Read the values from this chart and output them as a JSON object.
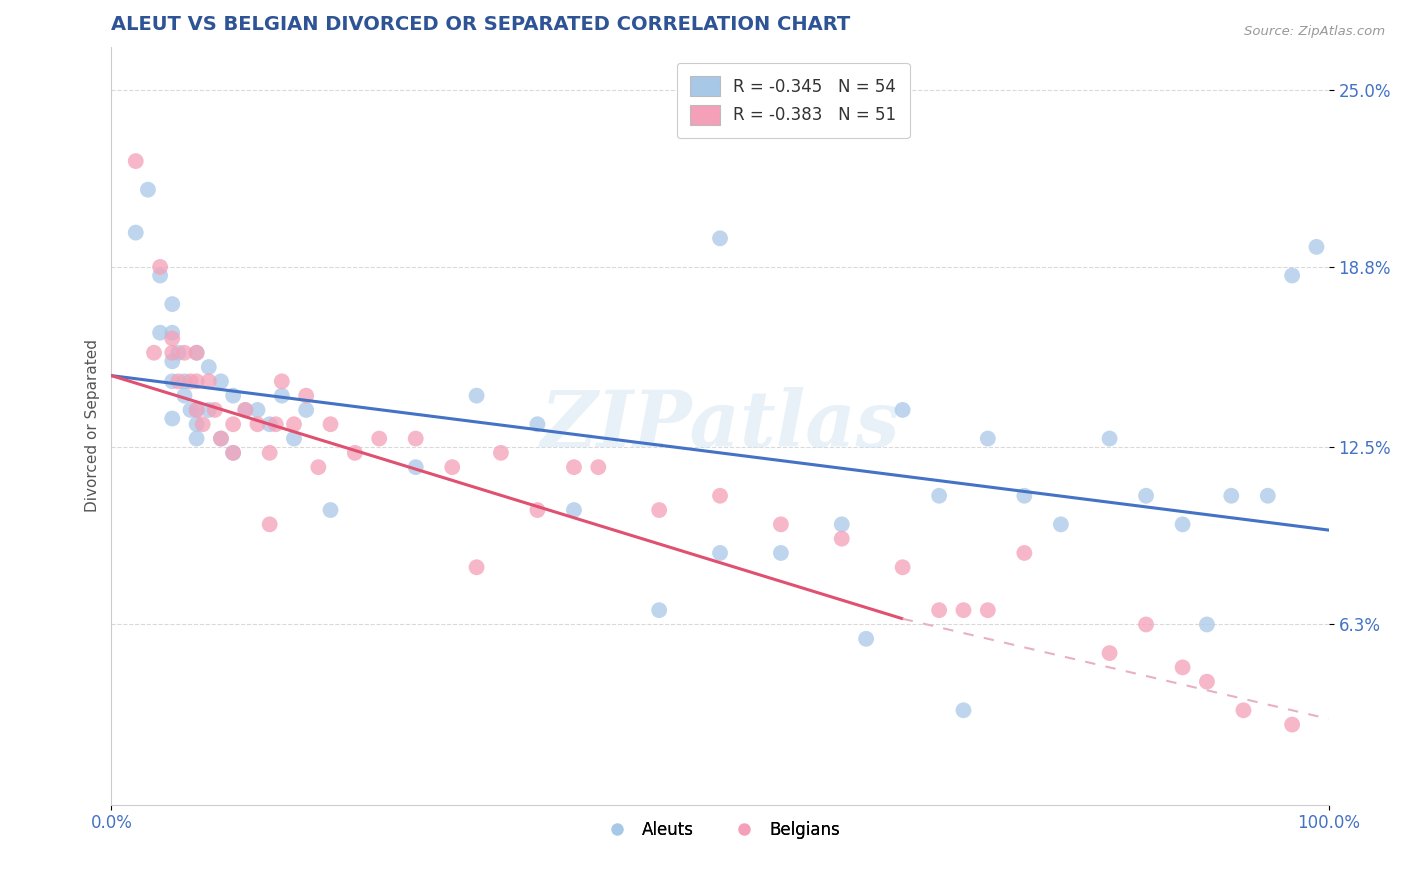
{
  "title": "ALEUT VS BELGIAN DIVORCED OR SEPARATED CORRELATION CHART",
  "source_text": "Source: ZipAtlas.com",
  "ylabel": "Divorced or Separated",
  "xlim": [
    0.0,
    1.0
  ],
  "ylim": [
    0.0,
    0.265
  ],
  "ytick_labels": [
    "6.3%",
    "12.5%",
    "18.8%",
    "25.0%"
  ],
  "ytick_values": [
    0.063,
    0.125,
    0.188,
    0.25
  ],
  "xtick_labels": [
    "0.0%",
    "100.0%"
  ],
  "xtick_values": [
    0.0,
    1.0
  ],
  "legend_blue_label": "R = -0.345   N = 54",
  "legend_pink_label": "R = -0.383   N = 51",
  "legend_bottom_blue": "Aleuts",
  "legend_bottom_pink": "Belgians",
  "blue_color": "#a8c8e8",
  "pink_color": "#f4a0b8",
  "blue_line_color": "#4472c4",
  "pink_line_color": "#e05070",
  "pink_dash_color": "#e8b0c0",
  "grid_color": "#c0c0c0",
  "title_color": "#2f5496",
  "tick_label_color": "#4472c4",
  "watermark": "ZIPatlas",
  "blue_scatter_x": [
    0.02,
    0.03,
    0.04,
    0.04,
    0.05,
    0.05,
    0.05,
    0.05,
    0.05,
    0.055,
    0.06,
    0.06,
    0.065,
    0.07,
    0.07,
    0.07,
    0.07,
    0.08,
    0.08,
    0.09,
    0.09,
    0.1,
    0.1,
    0.11,
    0.12,
    0.13,
    0.14,
    0.15,
    0.16,
    0.18,
    0.25,
    0.3,
    0.38,
    0.45,
    0.5,
    0.55,
    0.6,
    0.65,
    0.68,
    0.72,
    0.75,
    0.78,
    0.82,
    0.85,
    0.88,
    0.9,
    0.92,
    0.95,
    0.97,
    0.99,
    0.35,
    0.5,
    0.62,
    0.7
  ],
  "blue_scatter_y": [
    0.2,
    0.215,
    0.165,
    0.185,
    0.155,
    0.165,
    0.175,
    0.148,
    0.135,
    0.158,
    0.148,
    0.143,
    0.138,
    0.158,
    0.138,
    0.133,
    0.128,
    0.153,
    0.138,
    0.148,
    0.128,
    0.143,
    0.123,
    0.138,
    0.138,
    0.133,
    0.143,
    0.128,
    0.138,
    0.103,
    0.118,
    0.143,
    0.103,
    0.068,
    0.198,
    0.088,
    0.098,
    0.138,
    0.108,
    0.128,
    0.108,
    0.098,
    0.128,
    0.108,
    0.098,
    0.063,
    0.108,
    0.108,
    0.185,
    0.195,
    0.133,
    0.088,
    0.058,
    0.033
  ],
  "pink_scatter_x": [
    0.02,
    0.035,
    0.04,
    0.05,
    0.05,
    0.055,
    0.06,
    0.065,
    0.07,
    0.07,
    0.07,
    0.075,
    0.08,
    0.085,
    0.09,
    0.1,
    0.1,
    0.11,
    0.12,
    0.13,
    0.135,
    0.14,
    0.15,
    0.16,
    0.17,
    0.18,
    0.2,
    0.22,
    0.25,
    0.28,
    0.3,
    0.32,
    0.35,
    0.38,
    0.4,
    0.45,
    0.5,
    0.55,
    0.6,
    0.65,
    0.68,
    0.72,
    0.75,
    0.82,
    0.85,
    0.88,
    0.9,
    0.93,
    0.97,
    0.7,
    0.13
  ],
  "pink_scatter_y": [
    0.225,
    0.158,
    0.188,
    0.163,
    0.158,
    0.148,
    0.158,
    0.148,
    0.158,
    0.148,
    0.138,
    0.133,
    0.148,
    0.138,
    0.128,
    0.133,
    0.123,
    0.138,
    0.133,
    0.123,
    0.133,
    0.148,
    0.133,
    0.143,
    0.118,
    0.133,
    0.123,
    0.128,
    0.128,
    0.118,
    0.083,
    0.123,
    0.103,
    0.118,
    0.118,
    0.103,
    0.108,
    0.098,
    0.093,
    0.083,
    0.068,
    0.068,
    0.088,
    0.053,
    0.063,
    0.048,
    0.043,
    0.033,
    0.028,
    0.068,
    0.098
  ],
  "blue_trendline": [
    0.0,
    1.0,
    0.15,
    0.096
  ],
  "pink_solid_trendline": [
    0.0,
    0.65,
    0.15,
    0.065
  ],
  "pink_dash_trendline": [
    0.65,
    1.0,
    0.065,
    0.03
  ]
}
